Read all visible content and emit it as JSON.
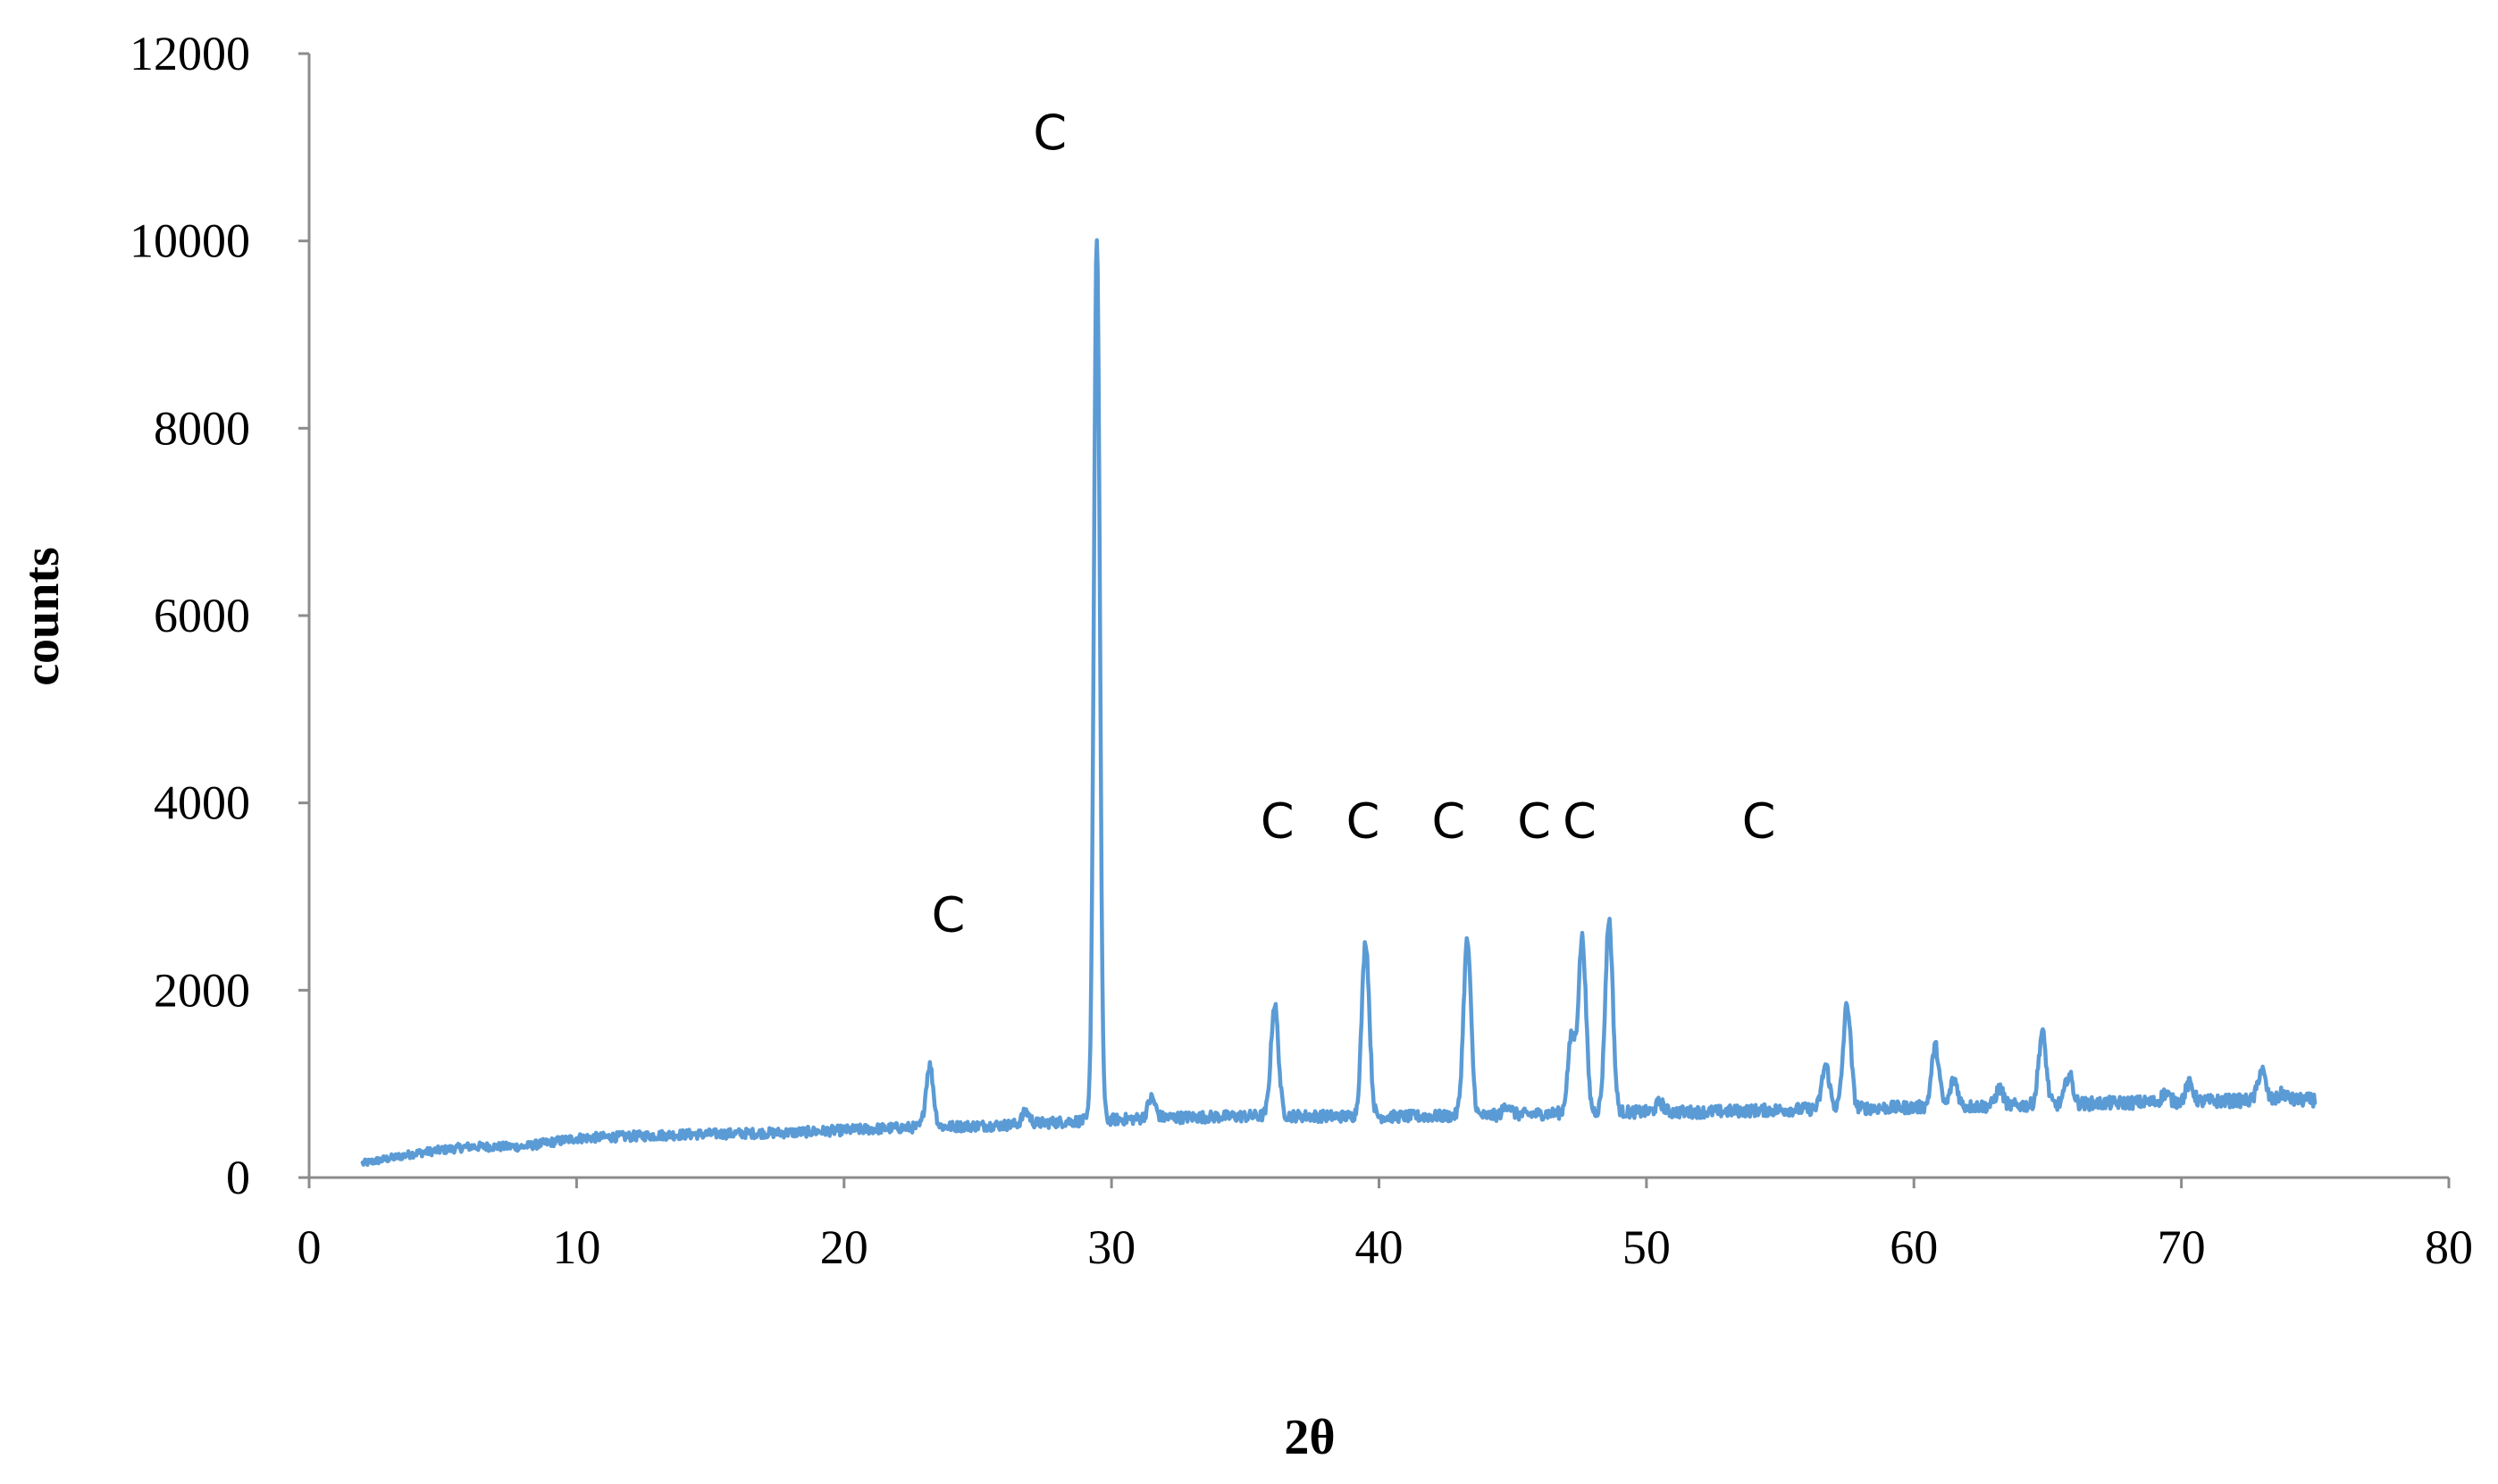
{
  "chart_data": {
    "type": "line",
    "title": "",
    "xlabel": "2θ",
    "ylabel": "counts",
    "xlim": [
      0,
      80
    ],
    "ylim": [
      0,
      12000
    ],
    "x_ticks": [
      0,
      10,
      20,
      30,
      40,
      50,
      60,
      70,
      80
    ],
    "y_ticks": [
      0,
      2000,
      4000,
      6000,
      8000,
      10000,
      12000
    ],
    "x_tick_labels": [
      "0",
      "10",
      "20",
      "30",
      "40",
      "50",
      "60",
      "70",
      "80"
    ],
    "y_tick_labels": [
      "0",
      "2000",
      "4000",
      "6000",
      "8000",
      "10000",
      "12000"
    ],
    "grid": false,
    "legend": "none",
    "series_color": "#5b9bd5",
    "series": [
      {
        "baseline": [
          [
            2,
            150
          ],
          [
            4,
            260
          ],
          [
            6,
            330
          ],
          [
            8,
            330
          ],
          [
            10,
            420
          ],
          [
            14,
            460
          ],
          [
            18,
            480
          ],
          [
            22,
            530
          ],
          [
            26,
            560
          ],
          [
            28.5,
            600
          ],
          [
            32,
            640
          ],
          [
            36,
            660
          ],
          [
            40,
            650
          ],
          [
            44,
            660
          ],
          [
            48,
            700
          ],
          [
            52,
            700
          ],
          [
            56,
            730
          ],
          [
            60,
            750
          ],
          [
            64,
            770
          ],
          [
            68,
            800
          ],
          [
            72,
            820
          ],
          [
            75,
            830
          ]
        ],
        "peaks": [
          {
            "x": 23.2,
            "y": 1200
          },
          {
            "x": 26.8,
            "y": 700
          },
          {
            "x": 29.45,
            "y": 10050
          },
          {
            "x": 31.5,
            "y": 850
          },
          {
            "x": 36.1,
            "y": 1850
          },
          {
            "x": 39.5,
            "y": 2520
          },
          {
            "x": 43.3,
            "y": 2530
          },
          {
            "x": 44.8,
            "y": 780
          },
          {
            "x": 47.2,
            "y": 1500
          },
          {
            "x": 47.6,
            "y": 2550
          },
          {
            "x": 48.6,
            "y": 2750
          },
          {
            "x": 50.5,
            "y": 800
          },
          {
            "x": 56.7,
            "y": 1200
          },
          {
            "x": 57.5,
            "y": 1850
          },
          {
            "x": 60.8,
            "y": 1400
          },
          {
            "x": 61.5,
            "y": 1050
          },
          {
            "x": 63.2,
            "y": 950
          },
          {
            "x": 64.8,
            "y": 1550
          },
          {
            "x": 65.8,
            "y": 1100
          },
          {
            "x": 69.4,
            "y": 900
          },
          {
            "x": 70.3,
            "y": 1000
          },
          {
            "x": 73.0,
            "y": 1150
          },
          {
            "x": 73.8,
            "y": 900
          }
        ]
      }
    ],
    "annotations": [
      {
        "text": "C",
        "x": 23.9,
        "y": 2630
      },
      {
        "text": "C",
        "x": 27.7,
        "y": 10980
      },
      {
        "text": "C",
        "x": 36.2,
        "y": 3630
      },
      {
        "text": "C",
        "x": 39.4,
        "y": 3630
      },
      {
        "text": "C",
        "x": 42.6,
        "y": 3630
      },
      {
        "text": "C",
        "x": 45.8,
        "y": 3630
      },
      {
        "text": "C",
        "x": 47.5,
        "y": 3630
      },
      {
        "text": "C",
        "x": 54.2,
        "y": 3630
      }
    ]
  }
}
